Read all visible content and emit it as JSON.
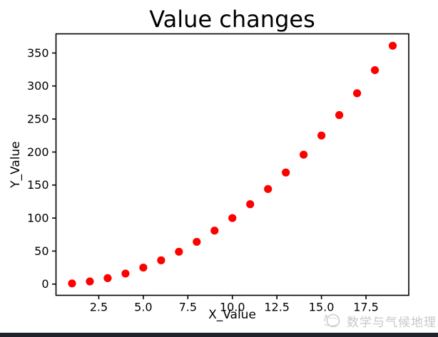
{
  "window": {
    "background": "#ffffff",
    "bottom_bar_color": "#1e222a"
  },
  "chart_data": {
    "type": "scatter",
    "title": "Value changes",
    "xlabel": "X_Value",
    "ylabel": "Y_Value",
    "x": [
      1,
      2,
      3,
      4,
      5,
      6,
      7,
      8,
      9,
      10,
      11,
      12,
      13,
      14,
      15,
      16,
      17,
      18,
      19
    ],
    "y": [
      1,
      4,
      9,
      16,
      25,
      36,
      49,
      64,
      81,
      100,
      121,
      144,
      169,
      196,
      225,
      256,
      289,
      324,
      361
    ],
    "marker_color": "#ff0000",
    "marker_radius": 5.6,
    "xlim": [
      0.1,
      19.9
    ],
    "ylim": [
      -17,
      379
    ],
    "xticks": [
      2.5,
      5.0,
      7.5,
      10.0,
      12.5,
      15.0,
      17.5
    ],
    "xtick_labels": [
      "2.5",
      "5.0",
      "7.5",
      "10.0",
      "12.5",
      "15.0",
      "17.5"
    ],
    "yticks": [
      0,
      50,
      100,
      150,
      200,
      250,
      300,
      350
    ],
    "ytick_labels": [
      "0",
      "50",
      "100",
      "150",
      "200",
      "250",
      "300",
      "350"
    ],
    "grid": false,
    "axis_color": "#000000",
    "tick_label_color": "#000000",
    "tick_font_size": 16
  },
  "watermark": {
    "text": "数学与气候地理",
    "color": "#c8c8c8"
  }
}
